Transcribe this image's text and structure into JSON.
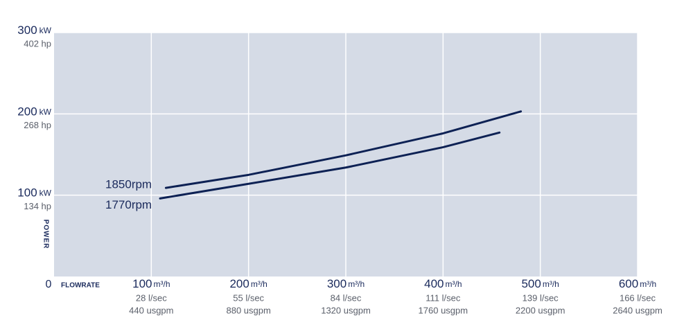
{
  "chart_data": {
    "type": "line",
    "y_label": "POWER",
    "x_label": "FLOWRATE",
    "ylim": [
      0,
      300
    ],
    "yticks": [
      0,
      100,
      200,
      300
    ],
    "ytick_unit": "kW",
    "ytick_hp": [
      "134 hp",
      "268 hp",
      "402 hp"
    ],
    "xlim": [
      0,
      600
    ],
    "xticks": [
      100,
      200,
      300,
      400,
      500,
      600
    ],
    "xtick_unit": "m³/h",
    "xtick_lsec": [
      "28 l/sec",
      "55 l/sec",
      "84 l/sec",
      "111 l/sec",
      "139 l/sec",
      "166 l/sec"
    ],
    "xtick_usgpm": [
      "440 usgpm",
      "880 usgpm",
      "1320 usgpm",
      "1760 usgpm",
      "2200 usgpm",
      "2640 usgpm"
    ],
    "grid": true,
    "series": [
      {
        "name": "1850rpm",
        "color": "#0d2154",
        "x": [
          115,
          200,
          300,
          400,
          480
        ],
        "values": [
          109,
          125,
          149,
          176,
          203
        ]
      },
      {
        "name": "1770rpm",
        "color": "#0d2154",
        "x": [
          109,
          200,
          300,
          400,
          458
        ],
        "values": [
          96,
          114,
          134,
          159,
          177
        ]
      }
    ]
  }
}
